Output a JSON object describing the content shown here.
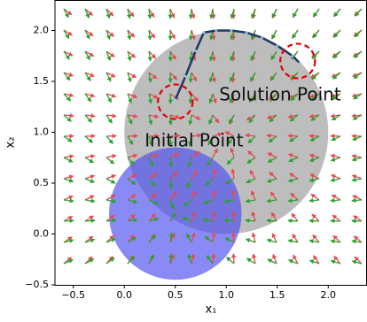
{
  "chart_data": {
    "type": "circles",
    "xlabel": "x₁",
    "ylabel": "x₂",
    "xlim": [
      -0.68,
      2.38
    ],
    "ylim": [
      -0.5,
      2.3
    ],
    "xticks": [
      {
        "value": -0.5,
        "label": "−0.5"
      },
      {
        "value": 0,
        "label": "0.0"
      },
      {
        "value": 0.5,
        "label": "0.5"
      },
      {
        "value": 1,
        "label": "1.0"
      },
      {
        "value": 1.5,
        "label": "1.5"
      },
      {
        "value": 2,
        "label": "2.0"
      }
    ],
    "yticks": [
      {
        "value": -0.5,
        "label": "−0.5"
      },
      {
        "value": 0,
        "label": "0.0"
      },
      {
        "value": 0.5,
        "label": "0.5"
      },
      {
        "value": 1,
        "label": "1.0"
      },
      {
        "value": 1.5,
        "label": "1.5"
      },
      {
        "value": 2,
        "label": "2.0"
      }
    ],
    "circles": [
      {
        "x": 1.0,
        "y": 1.0,
        "r": 1.0,
        "color": "#9a9a9a"
      },
      {
        "x": 0.5,
        "y": 0.2,
        "r": 0.65,
        "color": "#4b4bf2"
      }
    ],
    "trajectory": {
      "color": "#1f3a66",
      "x": [
        0.5,
        0.6,
        0.7,
        0.78,
        0.9,
        1.05,
        1.2,
        1.35,
        1.5,
        1.65,
        1.72
      ],
      "y": [
        1.32,
        1.55,
        1.8,
        1.98,
        2.0,
        2.0,
        1.98,
        1.93,
        1.85,
        1.75,
        1.68
      ]
    },
    "markers": [
      {
        "x": 0.5,
        "y": 1.3,
        "r": 0.17,
        "color": "#e00000"
      },
      {
        "x": 1.7,
        "y": 1.7,
        "r": 0.17,
        "color": "#e00000"
      }
    ],
    "annotations": [
      {
        "text": "Solution Point",
        "x": 0.93,
        "y": 1.36
      },
      {
        "text": "Initial Point",
        "x": 0.2,
        "y": 0.91
      }
    ]
  }
}
